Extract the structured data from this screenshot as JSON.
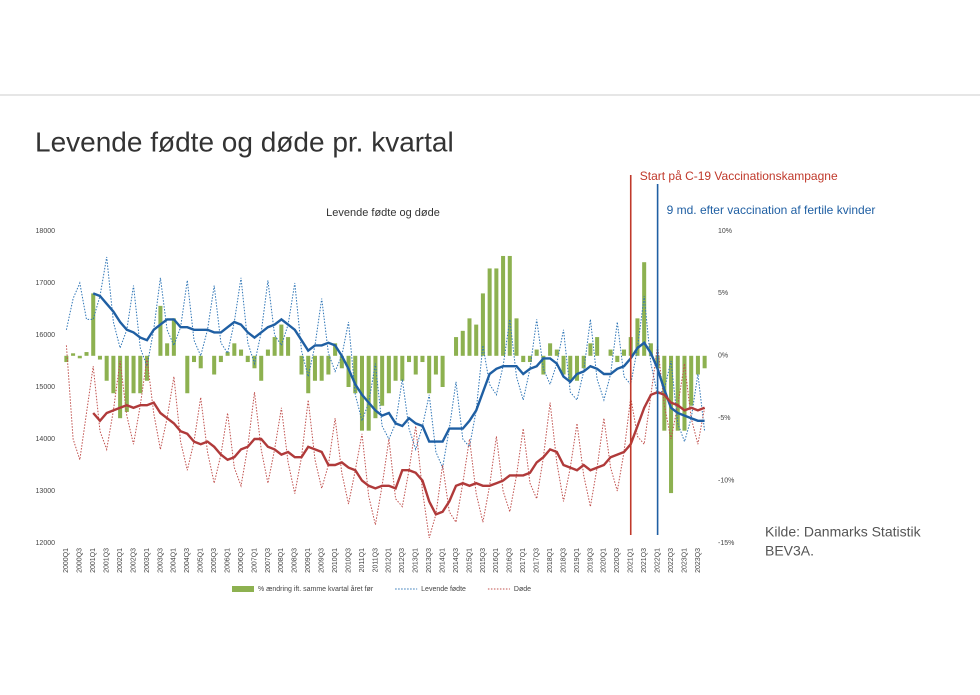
{
  "slide_title": "Levende fødte og døde pr. kvartal",
  "source": [
    "Kilde: Danmarks Statistik",
    "BEV3A."
  ],
  "chart_data": {
    "type": "combo",
    "title": "Levende fødte og døde",
    "categories": [
      "2000Q1",
      null,
      "2000Q3",
      null,
      "2001Q1",
      null,
      "2001Q3",
      null,
      "2002Q1",
      null,
      "2002Q3",
      null,
      "2003Q1",
      null,
      "2003Q3",
      null,
      "2004Q1",
      null,
      "2004Q3",
      null,
      "2005Q1",
      null,
      "2005Q3",
      null,
      "2006Q1",
      null,
      "2006Q3",
      null,
      "2007Q1",
      null,
      "2007Q3",
      null,
      "2008Q1",
      null,
      "2008Q3",
      null,
      "2009Q1",
      null,
      "2009Q3",
      null,
      "2010Q1",
      null,
      "2010Q3",
      null,
      "2011Q1",
      null,
      "2011Q3",
      null,
      "2012Q1",
      null,
      "2012Q3",
      null,
      "2013Q1",
      null,
      "2013Q3",
      null,
      "2014Q1",
      null,
      "2014Q3",
      null,
      "2015Q1",
      null,
      "2015Q3",
      null,
      "2016Q1",
      null,
      "2016Q3",
      null,
      "2017Q1",
      null,
      "2017Q3",
      null,
      "2018Q1",
      null,
      "2018Q3",
      null,
      "2019Q1",
      null,
      "2019Q3",
      null,
      "2020Q1",
      null,
      "2020Q3",
      null,
      "2021Q1",
      null,
      "2021Q3",
      null,
      "2022Q1",
      null,
      "2022Q3",
      null,
      "2023Q1",
      null,
      "2023Q3",
      null
    ],
    "series": [
      {
        "name": "% ændring ift. samme kvartal året før",
        "kind": "bar",
        "axis": "y2",
        "color": "#8db150",
        "values": [
          -0.5,
          0.2,
          -0.2,
          0.3,
          5,
          -0.3,
          -2,
          -3,
          -5,
          -4.5,
          -3,
          -3,
          -2,
          0,
          4,
          1,
          3,
          0,
          -3,
          -0.5,
          -1,
          0,
          -1.5,
          -0.5,
          0.3,
          1,
          0.5,
          -0.5,
          -1,
          -2,
          0.5,
          1.5,
          2.5,
          1.5,
          0,
          -1.5,
          -3,
          -2,
          -2,
          -1.5,
          1,
          -1,
          -2.5,
          -3,
          -6,
          -6,
          -5,
          -4,
          -3,
          -2,
          -2,
          -0.5,
          -1.5,
          -0.5,
          -3,
          -1.5,
          -2.5,
          0,
          1.5,
          2,
          3,
          2.5,
          5,
          7,
          7,
          8,
          8,
          3,
          -0.5,
          -0.5,
          0.5,
          -1.5,
          1,
          0.5,
          -1.5,
          -2,
          -2,
          -1,
          1,
          1.5,
          0,
          0.5,
          -0.5,
          0.5,
          1.5,
          3,
          7.5,
          1,
          -1,
          -6,
          -11,
          -6,
          -6,
          -4,
          -1.5,
          -1
        ]
      },
      {
        "name": "Levende fødte",
        "kind": "dotted",
        "color": "#2e75b6",
        "values": [
          16100,
          16700,
          17000,
          16300,
          16300,
          16750,
          17500,
          16250,
          15750,
          16100,
          16950,
          15750,
          15400,
          16100,
          17100,
          16100,
          15800,
          16150,
          17050,
          15900,
          15600,
          16100,
          16950,
          15850,
          15650,
          16250,
          17100,
          15850,
          15450,
          16050,
          17050,
          16000,
          15800,
          16200,
          17000,
          15700,
          15200,
          15800,
          16700,
          15650,
          15300,
          15600,
          16250,
          14850,
          14350,
          14700,
          15450,
          14250,
          14000,
          14300,
          15150,
          14200,
          13800,
          14250,
          14850,
          13750,
          13450,
          14200,
          15100,
          14000,
          13850,
          14550,
          15800,
          15050,
          14850,
          15400,
          16300,
          15200,
          14750,
          15350,
          16300,
          15350,
          15050,
          15450,
          16100,
          14900,
          14750,
          15300,
          16300,
          15150,
          14750,
          15250,
          16250,
          15200,
          15050,
          15750,
          16750,
          15450,
          14850,
          14950,
          15500,
          14300,
          13950,
          14400,
          15250,
          14150
        ]
      },
      {
        "name": "Døde",
        "kind": "dotted",
        "color": "#c0504d",
        "values": [
          15800,
          14000,
          13600,
          14500,
          15400,
          14150,
          13800,
          14550,
          15500,
          14450,
          13900,
          14650,
          15550,
          14500,
          13800,
          14400,
          15200,
          13950,
          13400,
          13950,
          14800,
          13750,
          13150,
          13700,
          14500,
          13450,
          13100,
          13850,
          14900,
          13800,
          13150,
          13800,
          14600,
          13550,
          12950,
          13650,
          14750,
          13600,
          13050,
          13500,
          14400,
          13350,
          12750,
          13400,
          14100,
          12900,
          12350,
          13100,
          14000,
          12850,
          12700,
          13400,
          14250,
          13000,
          12100,
          12550,
          13500,
          12600,
          12400,
          13150,
          14000,
          12950,
          12400,
          13100,
          14050,
          13000,
          12600,
          13300,
          14200,
          13150,
          12850,
          13650,
          14700,
          13550,
          12800,
          13450,
          14300,
          13300,
          12700,
          13450,
          14400,
          13450,
          13000,
          13750,
          14800,
          14050,
          13900,
          14850,
          15800,
          14650,
          14000,
          14650,
          15450,
          14400,
          13900,
          14600
        ]
      },
      {
        "kind": "trend",
        "color": "#1f5fa3",
        "values": [
          null,
          null,
          null,
          null,
          16800,
          16750,
          16600,
          16450,
          16250,
          16100,
          16050,
          15950,
          15900,
          16100,
          16200,
          16300,
          16300,
          16150,
          16150,
          16100,
          16100,
          16100,
          16050,
          16050,
          16150,
          16250,
          16200,
          16050,
          15950,
          16050,
          16150,
          16200,
          16300,
          16200,
          16100,
          15900,
          15700,
          15800,
          15800,
          15850,
          15800,
          15600,
          15350,
          15050,
          14850,
          14700,
          14550,
          14450,
          14500,
          14300,
          14250,
          14400,
          14300,
          14250,
          13950,
          13950,
          13950,
          14200,
          14200,
          14200,
          14350,
          14550,
          14900,
          15250,
          15350,
          15400,
          15400,
          15400,
          15250,
          15350,
          15400,
          15550,
          15550,
          15450,
          15200,
          15100,
          15250,
          15300,
          15400,
          15350,
          15250,
          15250,
          15350,
          15400,
          15550,
          15750,
          15850,
          15650,
          15350,
          14950,
          14600,
          14500,
          14450,
          14400,
          14350,
          14350
        ]
      },
      {
        "kind": "trend",
        "color": "#b03a3a",
        "values": [
          null,
          null,
          null,
          null,
          14500,
          14350,
          14500,
          14550,
          14600,
          14650,
          14600,
          14650,
          14650,
          14700,
          14500,
          14400,
          14300,
          14150,
          14100,
          13950,
          13900,
          13950,
          13850,
          13700,
          13600,
          13650,
          13800,
          13850,
          14000,
          14000,
          13850,
          13800,
          13700,
          13750,
          13650,
          13650,
          13850,
          13800,
          13750,
          13500,
          13500,
          13550,
          13450,
          13400,
          13200,
          13100,
          13050,
          13100,
          13100,
          13050,
          13400,
          13400,
          13350,
          13200,
          12800,
          12550,
          12600,
          12800,
          13100,
          13150,
          13100,
          13150,
          13100,
          13100,
          13150,
          13200,
          13300,
          13300,
          13300,
          13350,
          13550,
          13650,
          13800,
          13750,
          13500,
          13450,
          13400,
          13500,
          13400,
          13450,
          13500,
          13650,
          13700,
          13750,
          13900,
          14250,
          14600,
          14850,
          14900,
          14850,
          14700,
          14650,
          14550,
          14600,
          14550,
          14600
        ]
      }
    ],
    "ylim": [
      12000,
      18000
    ],
    "yticks": [
      12000,
      13000,
      14000,
      15000,
      16000,
      17000,
      18000
    ],
    "y2lim": [
      -15,
      10
    ],
    "y2ticks": [
      {
        "value": -15,
        "label": "-15%"
      },
      {
        "value": -10,
        "label": "-10%"
      },
      {
        "value": -5,
        "label": "-5%"
      },
      {
        "value": 0,
        "label": "0%"
      },
      {
        "value": 5,
        "label": "5%"
      },
      {
        "value": 10,
        "label": "10%"
      }
    ],
    "annotations": [
      {
        "text": "Start på C-19 Vaccinationskampagne",
        "category_index": 84,
        "color": "#c0392b"
      },
      {
        "text": "9 md. efter vaccination af fertile kvinder",
        "category_index": 88,
        "color": "#1f5fa3"
      }
    ]
  }
}
